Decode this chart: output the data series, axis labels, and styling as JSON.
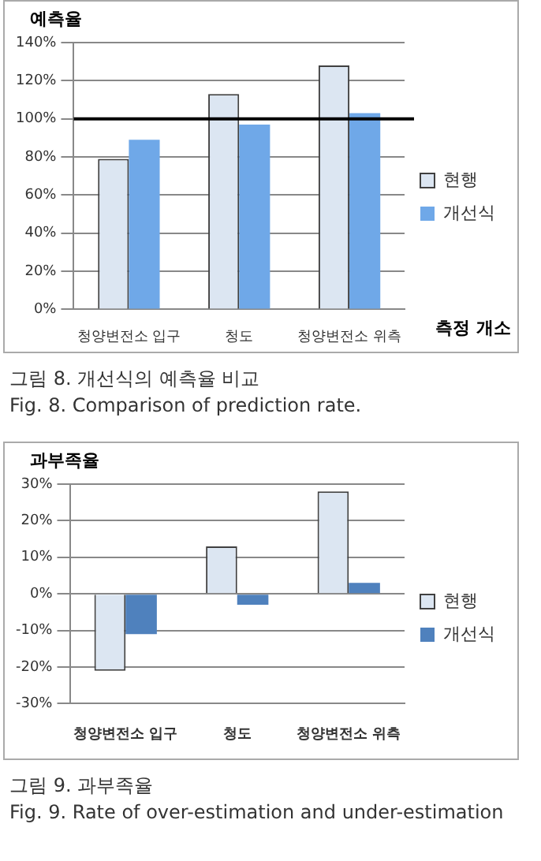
{
  "chart_data": [
    {
      "type": "bar",
      "ylabel": "예측율",
      "xlabel": "측정 개소",
      "categories": [
        "청양변전소 입구",
        "청도",
        "청양변전소 위측"
      ],
      "series": [
        {
          "name": "현행",
          "color": "#dce6f2",
          "values": [
            79,
            113,
            128
          ]
        },
        {
          "name": "개선식",
          "color": "#6fa8e8",
          "values": [
            89,
            97,
            103
          ]
        }
      ],
      "ylim": [
        0,
        140
      ],
      "yticks": [
        {
          "value": 0,
          "label": "0%"
        },
        {
          "value": 20,
          "label": "20%"
        },
        {
          "value": 40,
          "label": "40%"
        },
        {
          "value": 60,
          "label": "60%"
        },
        {
          "value": 80,
          "label": "80%"
        },
        {
          "value": 100,
          "label": "100%"
        },
        {
          "value": 120,
          "label": "120%"
        },
        {
          "value": 140,
          "label": "140%"
        }
      ],
      "grid": "y",
      "legend": "right",
      "ref_lines": [
        {
          "axis": "y",
          "value": 100,
          "color": "#000000"
        }
      ],
      "annotations": [
        "그림  8.   개선식의 예측율 비교",
        "Fig.   8.   Comparison of prediction rate."
      ]
    },
    {
      "type": "bar",
      "ylabel": "과부족율",
      "categories": [
        "청양변전소 입구",
        "청도",
        "청양변전소 위측"
      ],
      "series": [
        {
          "name": "현행",
          "color": "#dce6f2",
          "values": [
            -21,
            13,
            28
          ]
        },
        {
          "name": "개선식",
          "color": "#4f81bd",
          "values": [
            -11,
            -3,
            3
          ]
        }
      ],
      "ylim": [
        -30,
        30
      ],
      "yticks": [
        {
          "value": -30,
          "label": "-30%"
        },
        {
          "value": -20,
          "label": "-20%"
        },
        {
          "value": -10,
          "label": "-10%"
        },
        {
          "value": 0,
          "label": "0%"
        },
        {
          "value": 10,
          "label": "10%"
        },
        {
          "value": 20,
          "label": "20%"
        },
        {
          "value": 30,
          "label": "30%"
        }
      ],
      "grid": "y",
      "legend": "right",
      "annotations": [
        "그림  9.   과부족율",
        "Fig.   9.   Rate of over-estimation and under-estimation"
      ]
    }
  ]
}
